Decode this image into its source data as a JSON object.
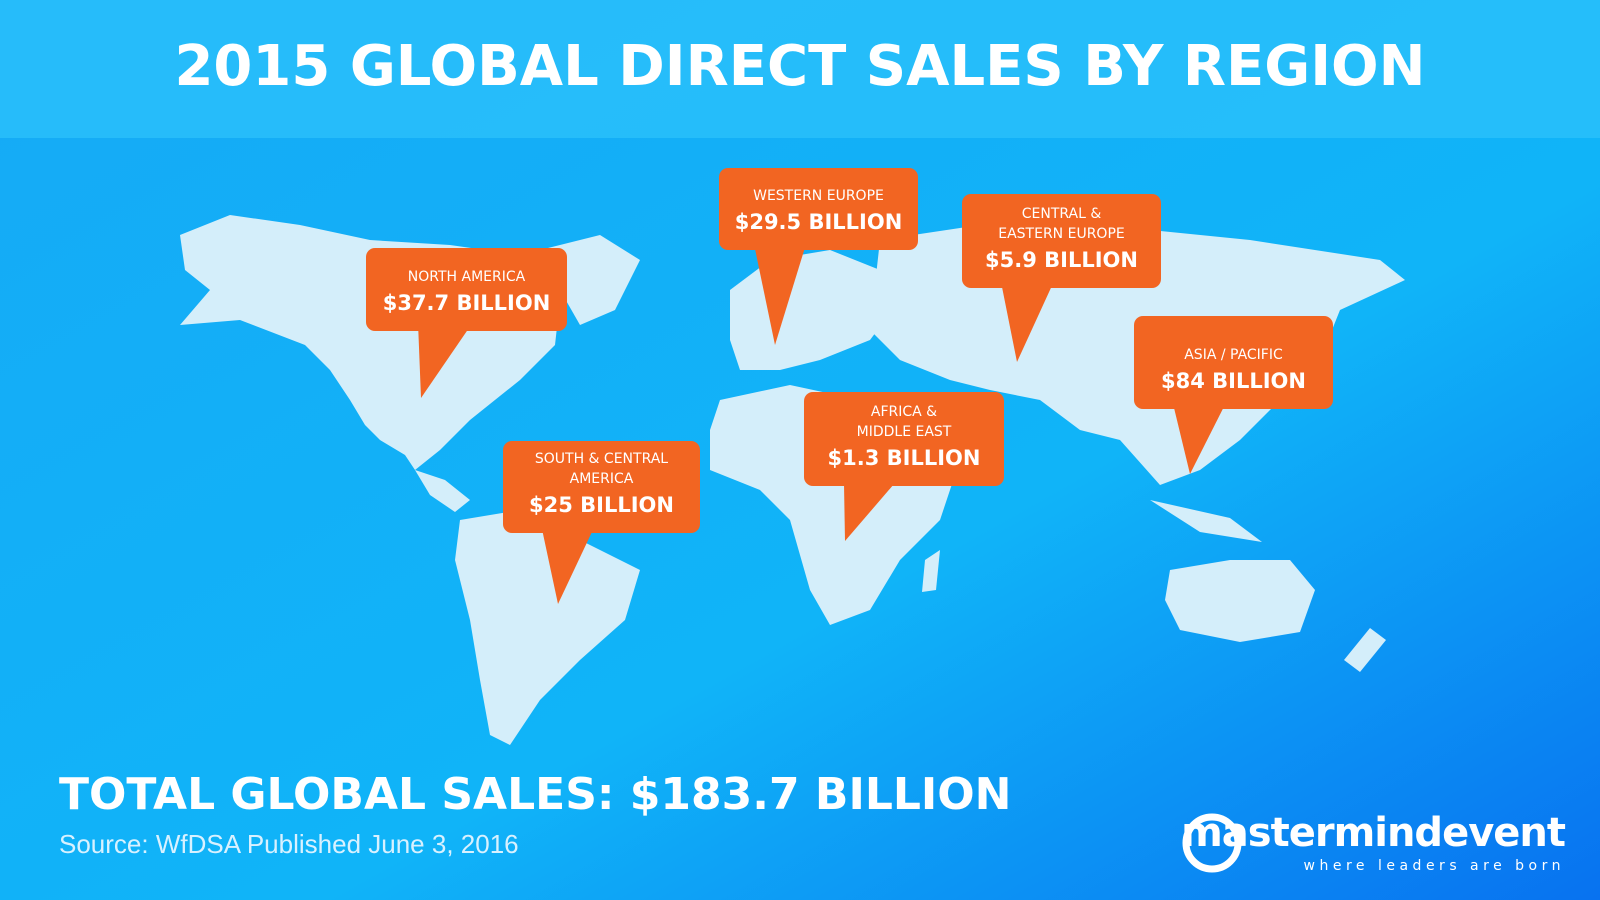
{
  "header": {
    "title": "2015 GLOBAL DIRECT SALES BY REGION"
  },
  "regions": [
    {
      "name_lines": [
        "NORTH AMERICA"
      ],
      "amount": "$37.7 BILLION"
    },
    {
      "name_lines": [
        "WESTERN EUROPE"
      ],
      "amount": "$29.5 BILLION"
    },
    {
      "name_lines": [
        "CENTRAL &",
        "EASTERN EUROPE"
      ],
      "amount": "$5.9 BILLION"
    },
    {
      "name_lines": [
        "ASIA / PACIFIC"
      ],
      "amount": "$84 BILLION"
    },
    {
      "name_lines": [
        "AFRICA &",
        "MIDDLE EAST"
      ],
      "amount": "$1.3 BILLION"
    },
    {
      "name_lines": [
        "SOUTH & CENTRAL",
        "AMERICA"
      ],
      "amount": "$25 BILLION"
    }
  ],
  "footer": {
    "total": "TOTAL GLOBAL SALES: $183.7 BILLION",
    "source": "Source: WfDSA Published June 3, 2016"
  },
  "logo": {
    "name": "mastermindevent",
    "tagline": "where leaders are born"
  }
}
